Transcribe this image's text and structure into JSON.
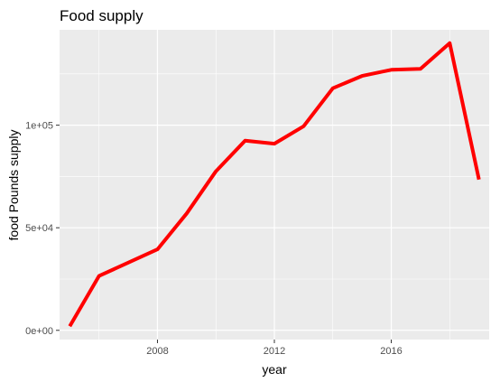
{
  "chart_data": {
    "type": "line",
    "title": "Food supply",
    "xlabel": "year",
    "ylabel": "food Pounds supply",
    "x": [
      2005,
      2006,
      2007,
      2008,
      2009,
      2010,
      2011,
      2012,
      2013,
      2014,
      2015,
      2016,
      2017,
      2018,
      2019
    ],
    "series": [
      {
        "values": [
          2000,
          26500,
          33000,
          39500,
          57000,
          77500,
          92500,
          91000,
          99500,
          118000,
          124000,
          127000,
          127500,
          140000,
          73500
        ],
        "color": "#ff0000"
      }
    ],
    "xlim": [
      2004.65,
      2019.35
    ],
    "ylim": [
      -4500,
      146500
    ],
    "xticks": [
      2008,
      2012,
      2016
    ],
    "xtick_labels": [
      "2008",
      "2012",
      "2016"
    ],
    "yticks": [
      0,
      50000,
      100000
    ],
    "ytick_labels": [
      "0e+00",
      "5e+04",
      "1e+05"
    ],
    "grid": true,
    "legend": "none",
    "panel_background": "#ebebeb",
    "grid_color": "#ffffff"
  }
}
